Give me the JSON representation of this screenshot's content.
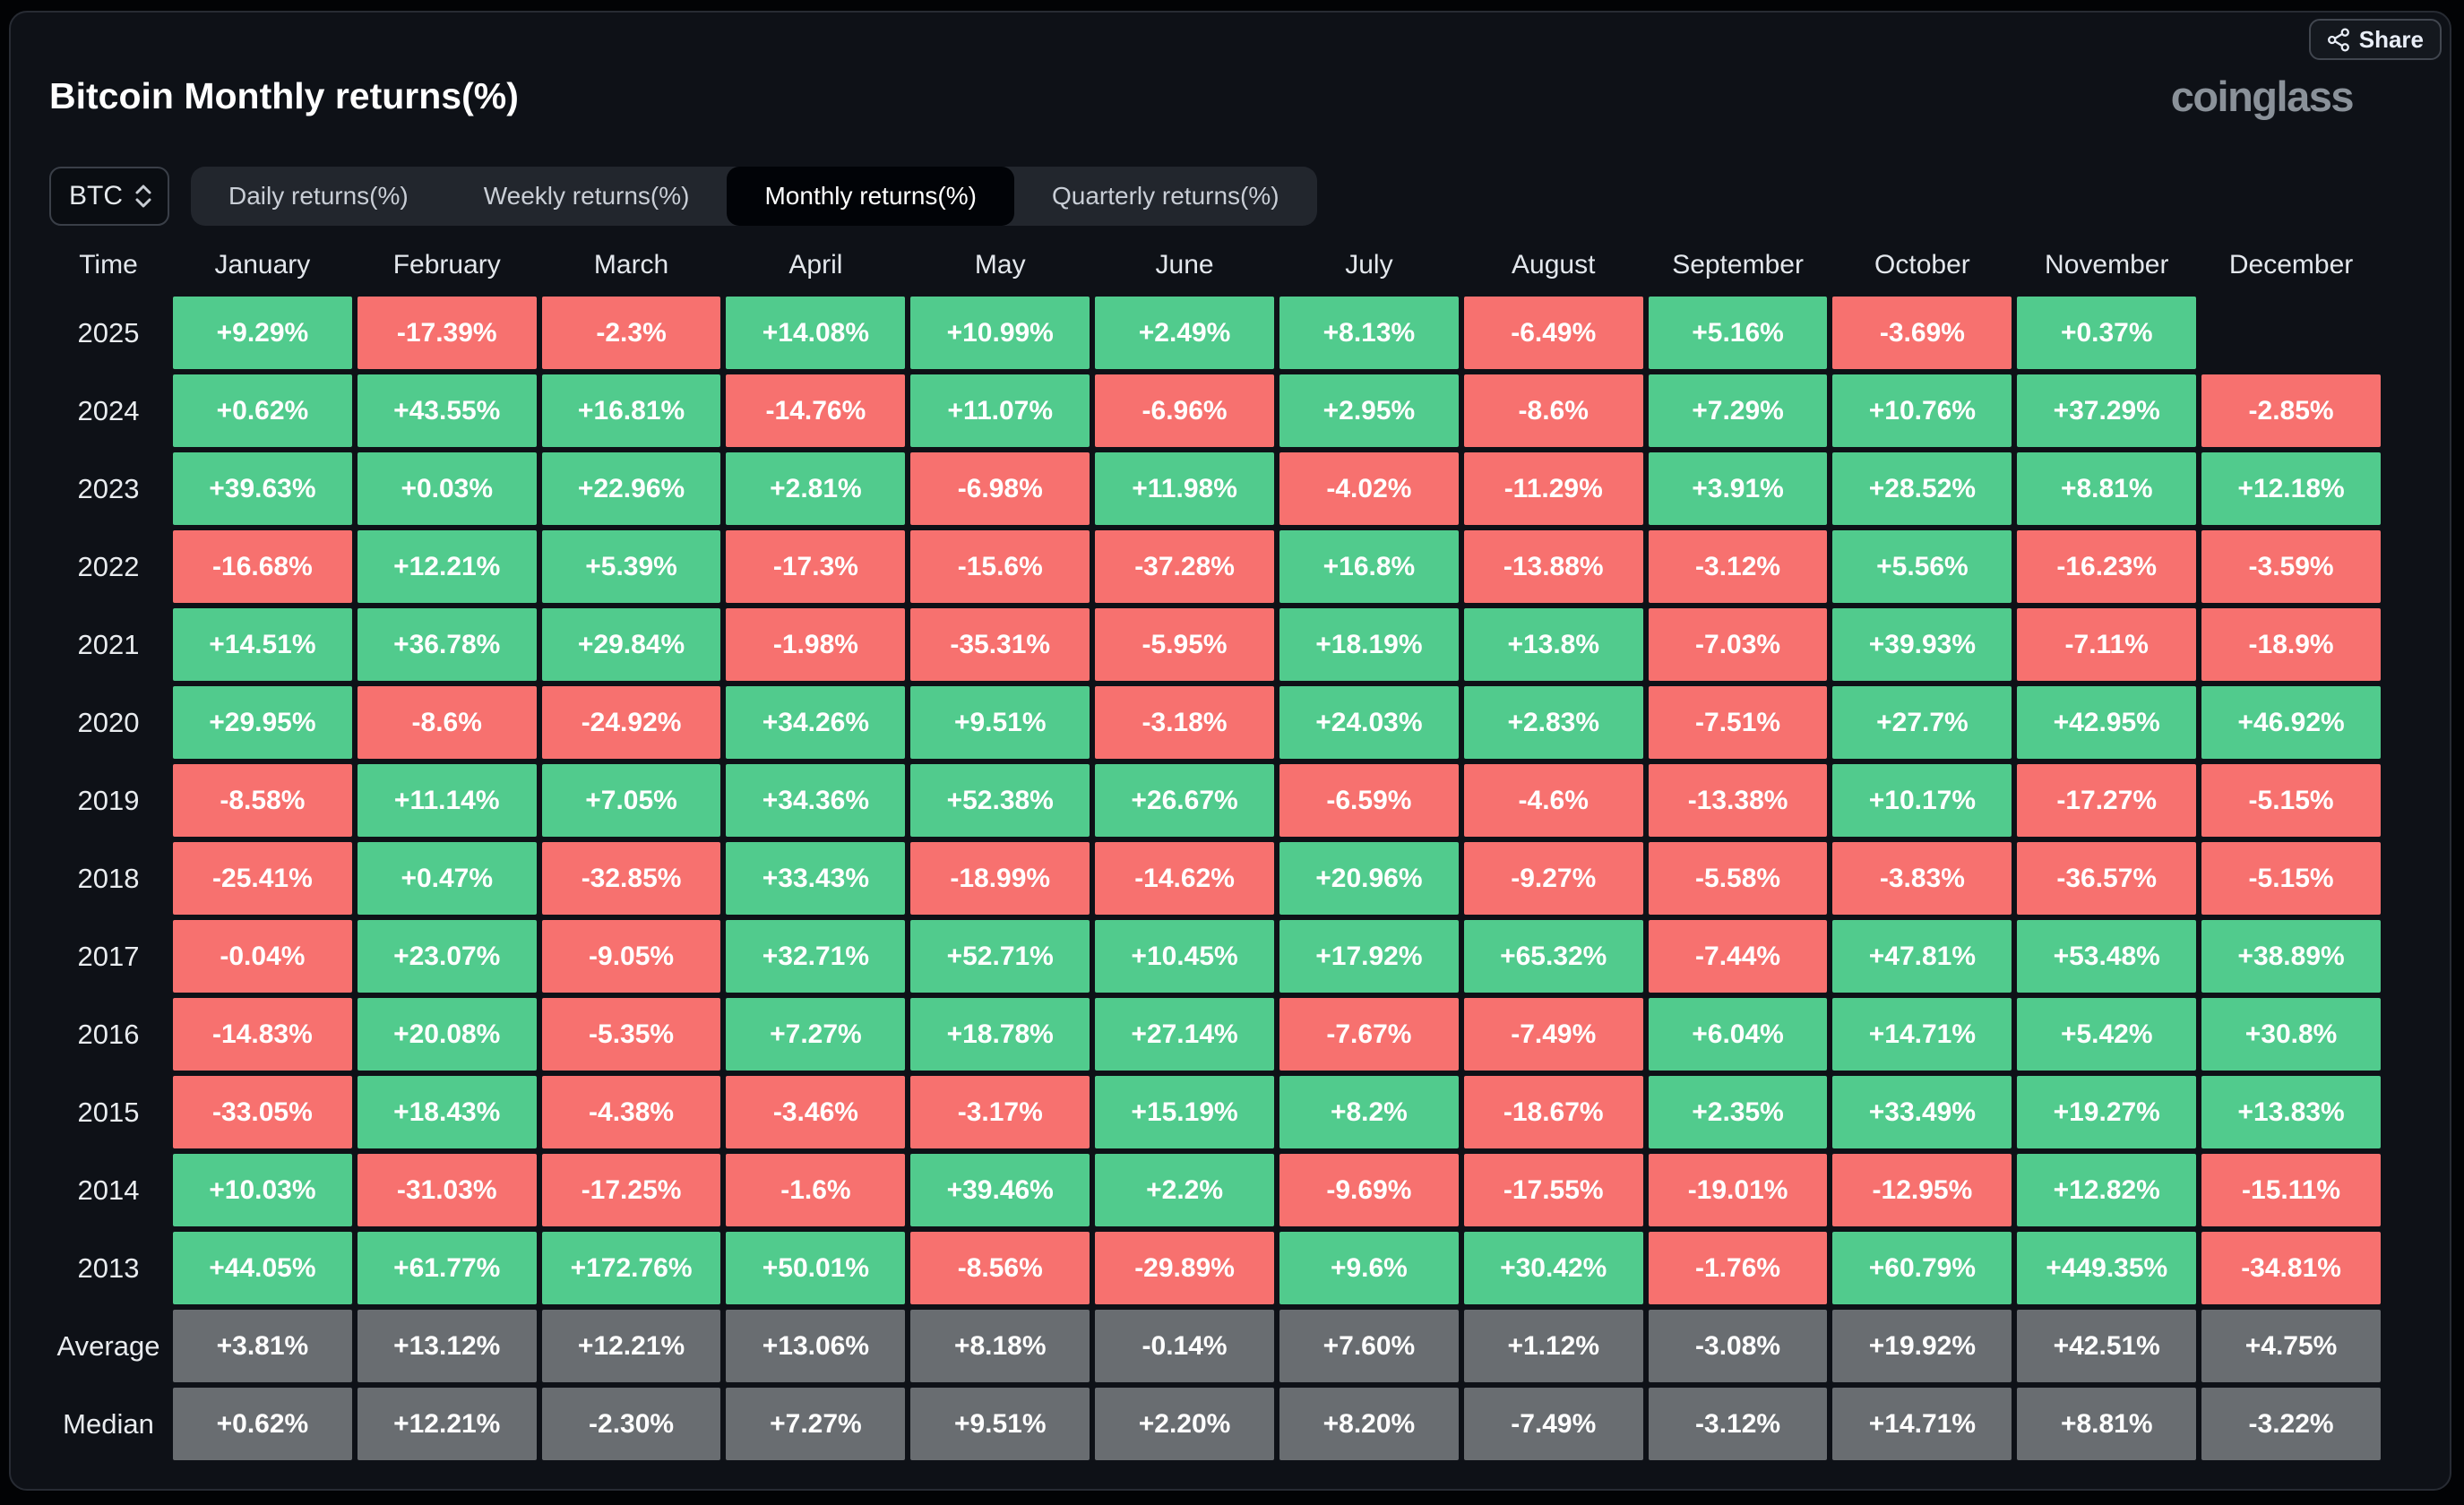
{
  "header": {
    "title": "Bitcoin Monthly returns(%)",
    "brand": "coinglass",
    "share_label": "Share"
  },
  "controls": {
    "coin": "BTC",
    "tabs": [
      {
        "label": "Daily returns(%)",
        "active": false
      },
      {
        "label": "Weekly returns(%)",
        "active": false
      },
      {
        "label": "Monthly returns(%)",
        "active": true
      },
      {
        "label": "Quarterly returns(%)",
        "active": false
      }
    ]
  },
  "colors": {
    "positive": "#51cb8d",
    "negative": "#f7716f",
    "summary": "#696d71"
  },
  "table": {
    "time_header": "Time",
    "months": [
      "January",
      "February",
      "March",
      "April",
      "May",
      "June",
      "July",
      "August",
      "September",
      "October",
      "November",
      "December"
    ],
    "rows": [
      {
        "label": "2025",
        "type": "year",
        "values": [
          "+9.29%",
          "-17.39%",
          "-2.3%",
          "+14.08%",
          "+10.99%",
          "+2.49%",
          "+8.13%",
          "-6.49%",
          "+5.16%",
          "-3.69%",
          "+0.37%",
          null
        ]
      },
      {
        "label": "2024",
        "type": "year",
        "values": [
          "+0.62%",
          "+43.55%",
          "+16.81%",
          "-14.76%",
          "+11.07%",
          "-6.96%",
          "+2.95%",
          "-8.6%",
          "+7.29%",
          "+10.76%",
          "+37.29%",
          "-2.85%"
        ]
      },
      {
        "label": "2023",
        "type": "year",
        "values": [
          "+39.63%",
          "+0.03%",
          "+22.96%",
          "+2.81%",
          "-6.98%",
          "+11.98%",
          "-4.02%",
          "-11.29%",
          "+3.91%",
          "+28.52%",
          "+8.81%",
          "+12.18%"
        ]
      },
      {
        "label": "2022",
        "type": "year",
        "values": [
          "-16.68%",
          "+12.21%",
          "+5.39%",
          "-17.3%",
          "-15.6%",
          "-37.28%",
          "+16.8%",
          "-13.88%",
          "-3.12%",
          "+5.56%",
          "-16.23%",
          "-3.59%"
        ]
      },
      {
        "label": "2021",
        "type": "year",
        "values": [
          "+14.51%",
          "+36.78%",
          "+29.84%",
          "-1.98%",
          "-35.31%",
          "-5.95%",
          "+18.19%",
          "+13.8%",
          "-7.03%",
          "+39.93%",
          "-7.11%",
          "-18.9%"
        ]
      },
      {
        "label": "2020",
        "type": "year",
        "values": [
          "+29.95%",
          "-8.6%",
          "-24.92%",
          "+34.26%",
          "+9.51%",
          "-3.18%",
          "+24.03%",
          "+2.83%",
          "-7.51%",
          "+27.7%",
          "+42.95%",
          "+46.92%"
        ]
      },
      {
        "label": "2019",
        "type": "year",
        "values": [
          "-8.58%",
          "+11.14%",
          "+7.05%",
          "+34.36%",
          "+52.38%",
          "+26.67%",
          "-6.59%",
          "-4.6%",
          "-13.38%",
          "+10.17%",
          "-17.27%",
          "-5.15%"
        ]
      },
      {
        "label": "2018",
        "type": "year",
        "values": [
          "-25.41%",
          "+0.47%",
          "-32.85%",
          "+33.43%",
          "-18.99%",
          "-14.62%",
          "+20.96%",
          "-9.27%",
          "-5.58%",
          "-3.83%",
          "-36.57%",
          "-5.15%"
        ]
      },
      {
        "label": "2017",
        "type": "year",
        "values": [
          "-0.04%",
          "+23.07%",
          "-9.05%",
          "+32.71%",
          "+52.71%",
          "+10.45%",
          "+17.92%",
          "+65.32%",
          "-7.44%",
          "+47.81%",
          "+53.48%",
          "+38.89%"
        ]
      },
      {
        "label": "2016",
        "type": "year",
        "values": [
          "-14.83%",
          "+20.08%",
          "-5.35%",
          "+7.27%",
          "+18.78%",
          "+27.14%",
          "-7.67%",
          "-7.49%",
          "+6.04%",
          "+14.71%",
          "+5.42%",
          "+30.8%"
        ]
      },
      {
        "label": "2015",
        "type": "year",
        "values": [
          "-33.05%",
          "+18.43%",
          "-4.38%",
          "-3.46%",
          "-3.17%",
          "+15.19%",
          "+8.2%",
          "-18.67%",
          "+2.35%",
          "+33.49%",
          "+19.27%",
          "+13.83%"
        ]
      },
      {
        "label": "2014",
        "type": "year",
        "values": [
          "+10.03%",
          "-31.03%",
          "-17.25%",
          "-1.6%",
          "+39.46%",
          "+2.2%",
          "-9.69%",
          "-17.55%",
          "-19.01%",
          "-12.95%",
          "+12.82%",
          "-15.11%"
        ]
      },
      {
        "label": "2013",
        "type": "year",
        "values": [
          "+44.05%",
          "+61.77%",
          "+172.76%",
          "+50.01%",
          "-8.56%",
          "-29.89%",
          "+9.6%",
          "+30.42%",
          "-1.76%",
          "+60.79%",
          "+449.35%",
          "-34.81%"
        ]
      },
      {
        "label": "Average",
        "type": "summary",
        "values": [
          "+3.81%",
          "+13.12%",
          "+12.21%",
          "+13.06%",
          "+8.18%",
          "-0.14%",
          "+7.60%",
          "+1.12%",
          "-3.08%",
          "+19.92%",
          "+42.51%",
          "+4.75%"
        ]
      },
      {
        "label": "Median",
        "type": "summary",
        "values": [
          "+0.62%",
          "+12.21%",
          "-2.30%",
          "+7.27%",
          "+9.51%",
          "+2.20%",
          "+8.20%",
          "-7.49%",
          "-3.12%",
          "+14.71%",
          "+8.81%",
          "-3.22%"
        ]
      }
    ]
  }
}
